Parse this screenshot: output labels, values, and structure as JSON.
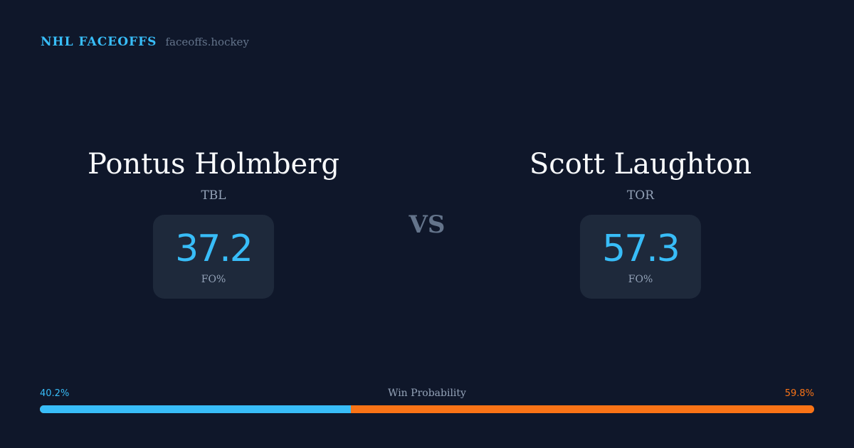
{
  "brand": {
    "title": "NHL FACEOFFS",
    "url": "faceoffs.hockey"
  },
  "players": [
    {
      "name": "Pontus Holmberg",
      "team": "TBL",
      "fo_pct": "37.2",
      "fo_label": "FO%"
    },
    {
      "name": "Scott Laughton",
      "team": "TOR",
      "fo_pct": "57.3",
      "fo_label": "FO%"
    }
  ],
  "vs_label": "VS",
  "win_probability": {
    "label": "Win Probability",
    "left_text": "40.2%",
    "right_text": "59.8%",
    "left_value": 40.2,
    "right_value": 59.8,
    "left_color": "#38bdf8",
    "right_color": "#f97316"
  }
}
